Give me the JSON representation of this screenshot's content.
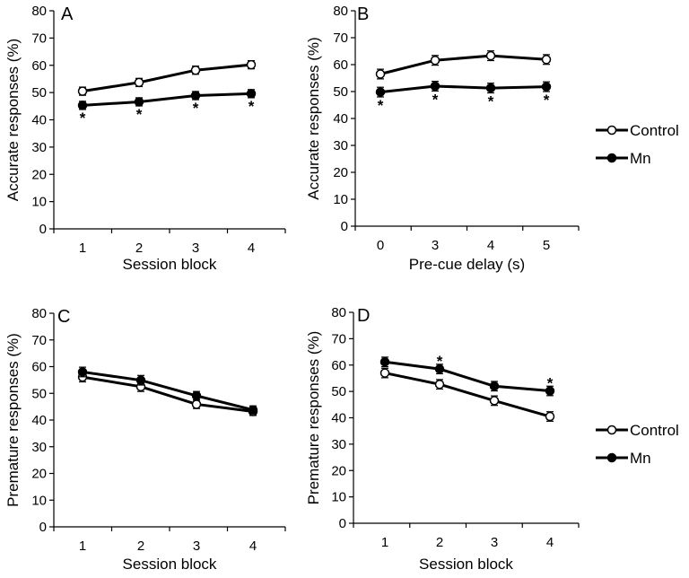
{
  "legends": [
    {
      "entries": [
        {
          "name": "Control",
          "marker": "open"
        },
        {
          "name": "Mn",
          "marker": "filled"
        }
      ]
    },
    {
      "entries": [
        {
          "name": "Control",
          "marker": "open"
        },
        {
          "name": "Mn",
          "marker": "filled"
        }
      ]
    }
  ],
  "chart_data": [
    {
      "type": "line",
      "panel": "A",
      "xlabel": "Session block",
      "ylabel": "Accurate responses (%)",
      "categories": [
        "1",
        "2",
        "3",
        "4"
      ],
      "ylim": [
        0,
        80
      ],
      "yticks": [
        0,
        10,
        20,
        30,
        40,
        50,
        60,
        70,
        80
      ],
      "series": [
        {
          "name": "Control",
          "marker": "open",
          "values": [
            50.5,
            53.7,
            58.2,
            60.2
          ],
          "errors": [
            1.5,
            1.5,
            1.5,
            1.5
          ]
        },
        {
          "name": "Mn",
          "marker": "filled",
          "values": [
            45.3,
            46.6,
            48.9,
            49.6
          ],
          "errors": [
            1.5,
            1.5,
            1.5,
            1.5
          ]
        }
      ],
      "significance": [
        {
          "category": "1",
          "label": "*",
          "position": "below"
        },
        {
          "category": "2",
          "label": "*",
          "position": "below"
        },
        {
          "category": "3",
          "label": "*",
          "position": "below"
        },
        {
          "category": "4",
          "label": "*",
          "position": "below"
        }
      ]
    },
    {
      "type": "line",
      "panel": "B",
      "xlabel": "Pre-cue delay  (s)",
      "ylabel": "Accurate responses (%)",
      "categories": [
        "0",
        "3",
        "4",
        "5"
      ],
      "ylim": [
        0,
        80
      ],
      "yticks": [
        0,
        10,
        20,
        30,
        40,
        50,
        60,
        70,
        80
      ],
      "series": [
        {
          "name": "Control",
          "marker": "open",
          "values": [
            56.5,
            61.6,
            63.3,
            61.9
          ],
          "errors": [
            1.8,
            1.8,
            1.8,
            1.8
          ]
        },
        {
          "name": "Mn",
          "marker": "filled",
          "values": [
            49.8,
            52.0,
            51.3,
            51.8
          ],
          "errors": [
            1.8,
            1.8,
            1.8,
            1.8
          ]
        }
      ],
      "significance": [
        {
          "category": "0",
          "label": "*",
          "position": "below"
        },
        {
          "category": "3",
          "label": "*",
          "position": "below"
        },
        {
          "category": "4",
          "label": "*",
          "position": "below"
        },
        {
          "category": "5",
          "label": "*",
          "position": "below"
        }
      ]
    },
    {
      "type": "line",
      "panel": "C",
      "xlabel": "Session block",
      "ylabel": "Premature responses (%)",
      "categories": [
        "1",
        "2",
        "3",
        "4"
      ],
      "ylim": [
        0,
        80
      ],
      "yticks": [
        0,
        10,
        20,
        30,
        40,
        50,
        60,
        70,
        80
      ],
      "series": [
        {
          "name": "Control",
          "marker": "open",
          "values": [
            56.1,
            52.5,
            45.9,
            43.2
          ],
          "errors": [
            1.8,
            1.8,
            1.6,
            1.5
          ]
        },
        {
          "name": "Mn",
          "marker": "filled",
          "values": [
            58.0,
            54.9,
            49.1,
            43.8
          ],
          "errors": [
            1.8,
            1.8,
            1.6,
            1.5
          ]
        }
      ],
      "significance": []
    },
    {
      "type": "line",
      "panel": "D",
      "xlabel": "Session block",
      "ylabel": "Premature responses (%)",
      "categories": [
        "1",
        "2",
        "3",
        "4"
      ],
      "ylim": [
        0,
        80
      ],
      "yticks": [
        0,
        10,
        20,
        30,
        40,
        50,
        60,
        70,
        80
      ],
      "series": [
        {
          "name": "Control",
          "marker": "open",
          "values": [
            57.0,
            52.7,
            46.5,
            40.5
          ],
          "errors": [
            1.8,
            1.8,
            1.8,
            1.8
          ]
        },
        {
          "name": "Mn",
          "marker": "filled",
          "values": [
            61.2,
            58.5,
            52.0,
            50.2
          ],
          "errors": [
            1.8,
            1.8,
            1.8,
            1.8
          ]
        }
      ],
      "significance": [
        {
          "category": "2",
          "label": "*",
          "position": "above"
        },
        {
          "category": "4",
          "label": "*",
          "position": "above"
        }
      ]
    }
  ]
}
